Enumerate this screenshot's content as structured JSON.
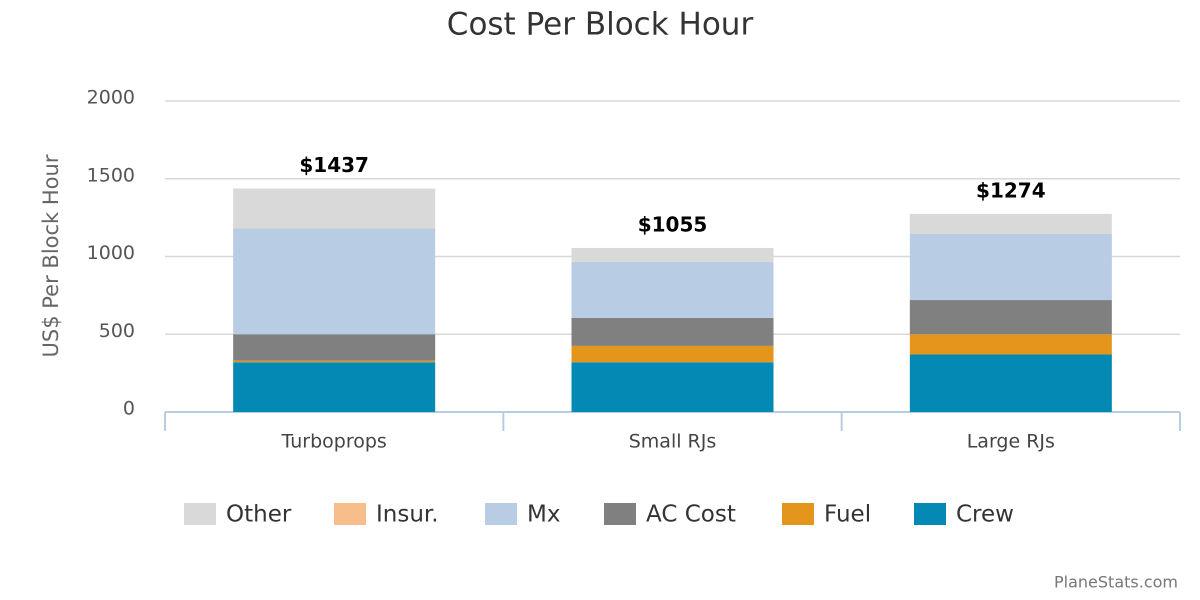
{
  "chart_data": {
    "type": "stacked-bar",
    "title": "Cost Per Block Hour",
    "y_label": "US$ Per Block Hour",
    "credit": "PlaneStats.com",
    "categories": [
      "Turboprops",
      "Small RJs",
      "Large RJs"
    ],
    "series": [
      {
        "name": "Other",
        "color": "#d9d9d9",
        "values": [
          257,
          90,
          129
        ]
      },
      {
        "name": "Insur.",
        "color": "#f7be8c",
        "values": [
          0,
          0,
          0
        ]
      },
      {
        "name": "Mx",
        "color": "#b8cce4",
        "values": [
          680,
          360,
          425
        ]
      },
      {
        "name": "AC Cost",
        "color": "#808080",
        "values": [
          170,
          180,
          220
        ]
      },
      {
        "name": "Fuel",
        "color": "#e4961c",
        "values": [
          10,
          105,
          130
        ]
      },
      {
        "name": "Crew",
        "color": "#0489b5",
        "values": [
          320,
          320,
          370
        ]
      }
    ],
    "totals": [
      1437,
      1055,
      1274
    ],
    "total_labels": [
      "$1437",
      "$1055",
      "$1274"
    ],
    "ylim": [
      0,
      2000
    ],
    "yticks": [
      0,
      500,
      1000,
      1500,
      2000
    ],
    "grid": true
  }
}
